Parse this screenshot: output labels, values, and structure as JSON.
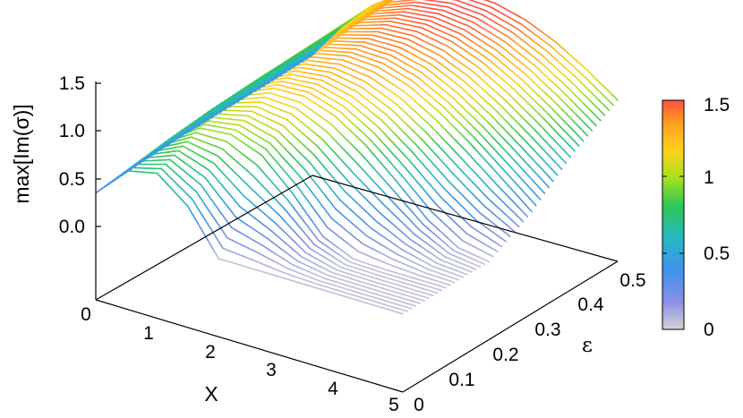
{
  "chart_data": {
    "type": "surface",
    "title": "",
    "xlabel": "X",
    "ylabel": "ε",
    "zlabel": "max[Im(σ)]",
    "xlim": [
      0,
      5
    ],
    "ylim": [
      0,
      0.5
    ],
    "zlim": [
      0,
      1.5
    ],
    "x_ticks": [
      "0",
      "1",
      "2",
      "3",
      "4",
      "5"
    ],
    "y_ticks": [
      "0",
      "0.1",
      "0.2",
      "0.3",
      "0.4",
      "0.5"
    ],
    "z_ticks": [
      "0.0",
      "0.5",
      "1.0",
      "1.5"
    ],
    "colorbar": {
      "range": [
        0,
        1.5
      ],
      "ticks": [
        "0",
        "0.5",
        "1",
        "1.5"
      ],
      "colors": [
        "#d4d4d4",
        "#7b86ee",
        "#3aa0e8",
        "#27c4a8",
        "#30c84a",
        "#b5e21a",
        "#ffd21a",
        "#ff9e1e",
        "#ff5a3c"
      ]
    },
    "grid": false,
    "lines": "one curve per ε value, z as a function of X",
    "series": [
      {
        "eps": 0.0,
        "x": [
          0,
          0.5,
          1,
          1.5,
          2,
          2.5,
          3,
          3.5,
          4,
          4.5,
          5
        ],
        "z": [
          0.35,
          0.68,
          0.75,
          0.5,
          0.05,
          0.05,
          0.05,
          0.05,
          0.05,
          0.05,
          0.05
        ]
      },
      {
        "eps": 0.1,
        "x": [
          0,
          0.5,
          1,
          1.5,
          2,
          2.5,
          3,
          3.5,
          4,
          4.5,
          5
        ],
        "z": [
          0.38,
          0.74,
          0.95,
          0.98,
          0.86,
          0.56,
          0.2,
          0.06,
          0.05,
          0.05,
          0.05
        ]
      },
      {
        "eps": 0.2,
        "x": [
          0,
          0.5,
          1,
          1.5,
          2,
          2.5,
          3,
          3.5,
          4,
          4.5,
          5
        ],
        "z": [
          0.4,
          0.78,
          1.05,
          1.19,
          1.2,
          1.09,
          0.88,
          0.6,
          0.3,
          0.1,
          0.05
        ]
      },
      {
        "eps": 0.3,
        "x": [
          0,
          0.5,
          1,
          1.5,
          2,
          2.5,
          3,
          3.5,
          4,
          4.5,
          5
        ],
        "z": [
          0.4,
          0.8,
          1.1,
          1.28,
          1.35,
          1.33,
          1.23,
          1.05,
          0.82,
          0.56,
          0.3
        ]
      },
      {
        "eps": 0.4,
        "x": [
          0,
          0.5,
          1,
          1.5,
          2,
          2.5,
          3,
          3.5,
          4,
          4.5,
          5
        ],
        "z": [
          0.4,
          0.81,
          1.12,
          1.33,
          1.44,
          1.47,
          1.42,
          1.3,
          1.12,
          0.9,
          0.66
        ]
      },
      {
        "eps": 0.5,
        "x": [
          0,
          0.5,
          1,
          1.5,
          2,
          2.5,
          3,
          3.5,
          4,
          4.5,
          5
        ],
        "z": [
          0.41,
          0.82,
          1.14,
          1.36,
          1.5,
          1.56,
          1.55,
          1.47,
          1.33,
          1.14,
          0.92
        ]
      }
    ]
  }
}
